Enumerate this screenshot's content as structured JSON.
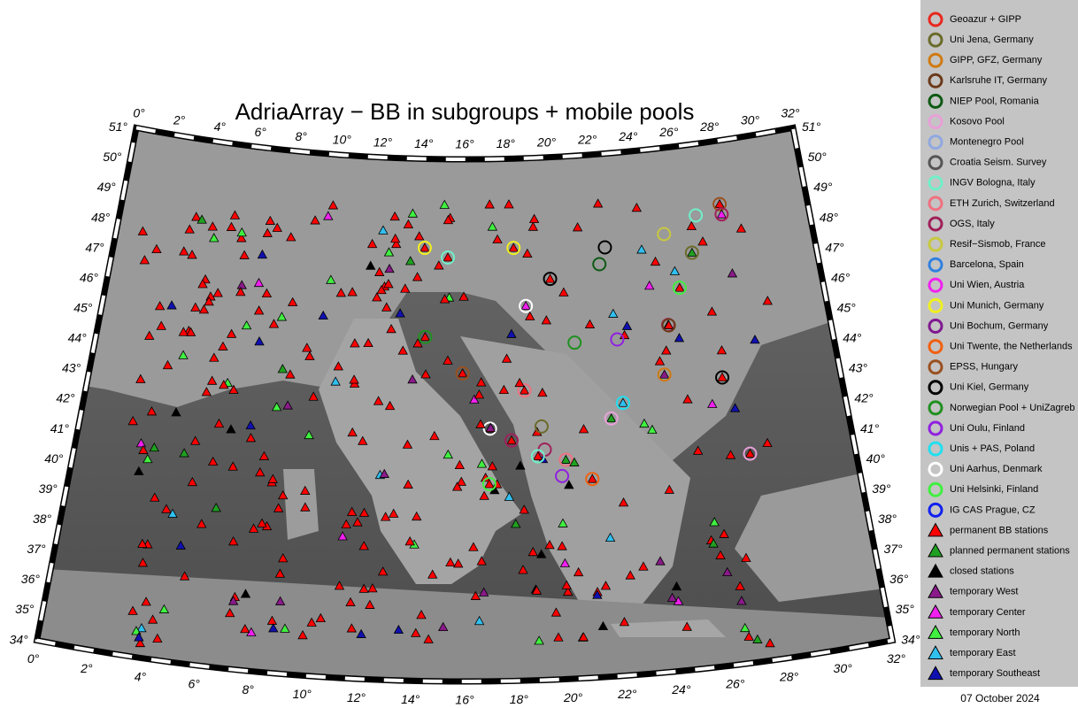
{
  "title": "AdriaArray − BB in subgroups + mobile pools",
  "longitude_labels": [
    "0°",
    "2°",
    "4°",
    "6°",
    "8°",
    "10°",
    "12°",
    "14°",
    "16°",
    "18°",
    "20°",
    "22°",
    "24°",
    "26°",
    "28°",
    "30°",
    "32°"
  ],
  "latitude_labels": [
    "34°",
    "35°",
    "36°",
    "37°",
    "38°",
    "39°",
    "40°",
    "41°",
    "42°",
    "43°",
    "44°",
    "45°",
    "46°",
    "47°",
    "48°",
    "49°",
    "50°",
    "51°"
  ],
  "legend": [
    {
      "label": "Geoazur + GIPP",
      "marker": "circle",
      "color": "#e8281e"
    },
    {
      "label": "Uni Jena, Germany",
      "marker": "circle",
      "color": "#6b6b2a"
    },
    {
      "label": "GIPP, GFZ, Germany",
      "marker": "circle",
      "color": "#d07a12"
    },
    {
      "label": "Karlsruhe IT, Germany",
      "marker": "circle",
      "color": "#6b3a1a"
    },
    {
      "label": "NIEP Pool, Romania",
      "marker": "circle",
      "color": "#0d5a12"
    },
    {
      "label": "Kosovo Pool",
      "marker": "circle",
      "color": "#e8a0d8"
    },
    {
      "label": "Montenegro Pool",
      "marker": "circle",
      "color": "#90a8e0"
    },
    {
      "label": "Croatia Seism. Survey",
      "marker": "circle",
      "color": "#555555"
    },
    {
      "label": "INGV Bologna, Italy",
      "marker": "circle",
      "color": "#70f0c8"
    },
    {
      "label": "ETH Zurich, Switzerland",
      "marker": "circle",
      "color": "#f07080"
    },
    {
      "label": "OGS, Italy",
      "marker": "circle",
      "color": "#a0205a"
    },
    {
      "label": "Resif−Sismob, France",
      "marker": "circle",
      "color": "#c8c840"
    },
    {
      "label": "Barcelona, Spain",
      "marker": "circle",
      "color": "#3080e0"
    },
    {
      "label": "Uni Wien, Austria",
      "marker": "circle",
      "color": "#f020f0"
    },
    {
      "label": "Uni Munich, Germany",
      "marker": "circle",
      "color": "#f0f020"
    },
    {
      "label": "Uni Bochum, Germany",
      "marker": "circle",
      "color": "#801890"
    },
    {
      "label": "Uni Twente, the Netherlands",
      "marker": "circle",
      "color": "#f06010"
    },
    {
      "label": "EPSS, Hungary",
      "marker": "circle",
      "color": "#9a5020"
    },
    {
      "label": "Uni Kiel, Germany",
      "marker": "circle",
      "color": "#000000"
    },
    {
      "label": "Norwegian Pool + UniZagreb",
      "marker": "circle",
      "color": "#209020"
    },
    {
      "label": "Uni Oulu, Finland",
      "marker": "circle",
      "color": "#9020e0"
    },
    {
      "label": "Unis + PAS, Poland",
      "marker": "circle",
      "color": "#20e0f0"
    },
    {
      "label": "Uni Aarhus, Denmark",
      "marker": "circle",
      "color": "#ffffff"
    },
    {
      "label": "Uni Helsinki, Finland",
      "marker": "circle",
      "color": "#40f040"
    },
    {
      "label": "IG CAS Prague, CZ",
      "marker": "circle",
      "color": "#1020f0"
    },
    {
      "label": "permanent BB stations",
      "marker": "triangle",
      "color": "#ff0000"
    },
    {
      "label": "planned permanent stations",
      "marker": "triangle",
      "color": "#20a020"
    },
    {
      "label": "closed stations",
      "marker": "triangle",
      "color": "#000000"
    },
    {
      "label": "temporary West",
      "marker": "triangle",
      "color": "#8a1a8a"
    },
    {
      "label": "temporary Center",
      "marker": "triangle",
      "color": "#f020f0"
    },
    {
      "label": "temporary North",
      "marker": "triangle",
      "color": "#40f040"
    },
    {
      "label": "temporary East",
      "marker": "triangle",
      "color": "#30c0f0"
    },
    {
      "label": "temporary Southeast",
      "marker": "triangle",
      "color": "#1010b0"
    }
  ],
  "date": "07 October 2024"
}
